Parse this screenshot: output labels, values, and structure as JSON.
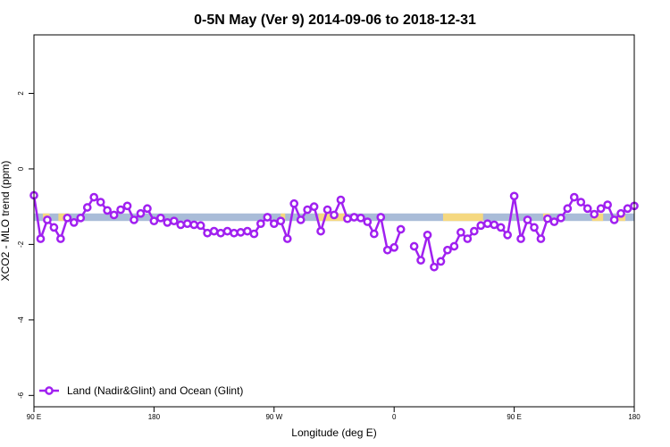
{
  "chart_data": {
    "type": "line",
    "title": "0-5N May (Ver 9)   2014-09-06 to 2018-12-31",
    "xlabel": "Longitude (deg E)",
    "ylabel": "XCO2 - MLO trend (ppm)",
    "xlim": [
      -90,
      180
    ],
    "ylim": [
      -6.3,
      3.55
    ],
    "xticks": [
      {
        "value": -90,
        "label": "90 E"
      },
      {
        "value": -36,
        "label": "180"
      },
      {
        "value": 18,
        "label": "90 W"
      },
      {
        "value": 72,
        "label": "0"
      },
      {
        "value": 126,
        "label": "90 E"
      },
      {
        "value": 180,
        "label": "180"
      }
    ],
    "yticks": [
      2,
      0,
      -2,
      -4,
      -6
    ],
    "grid": false,
    "legend_position": "bottom-left",
    "colors": {
      "series": "#a020f0",
      "band": "#a9bcd8",
      "band_highlight": "#f5d880"
    },
    "band": {
      "y_low": -1.38,
      "y_high": -1.18
    },
    "band_highlights": [
      [
        -86,
        -83
      ],
      [
        -79,
        -74
      ],
      [
        21,
        23
      ],
      [
        38,
        50
      ],
      [
        94,
        112
      ],
      [
        139,
        142
      ],
      [
        161,
        166
      ],
      [
        172,
        176
      ]
    ],
    "series": [
      {
        "name": "Land (Nadir&Glint) and Ocean (Glint)",
        "points": [
          {
            "x": -90,
            "y": -0.7
          },
          {
            "x": -87,
            "y": -1.85
          },
          {
            "x": -84,
            "y": -1.35
          },
          {
            "x": -81,
            "y": -1.55
          },
          {
            "x": -78,
            "y": -1.85
          },
          {
            "x": -75,
            "y": -1.3
          },
          {
            "x": -72,
            "y": -1.42
          },
          {
            "x": -69,
            "y": -1.3
          },
          {
            "x": -66,
            "y": -1.02
          },
          {
            "x": -63,
            "y": -0.75
          },
          {
            "x": -60,
            "y": -0.88
          },
          {
            "x": -57,
            "y": -1.1
          },
          {
            "x": -54,
            "y": -1.22
          },
          {
            "x": -51,
            "y": -1.08
          },
          {
            "x": -48,
            "y": -0.98
          },
          {
            "x": -45,
            "y": -1.35
          },
          {
            "x": -42,
            "y": -1.18
          },
          {
            "x": -39,
            "y": -1.05
          },
          {
            "x": -36,
            "y": -1.38
          },
          {
            "x": -33,
            "y": -1.3
          },
          {
            "x": -30,
            "y": -1.42
          },
          {
            "x": -27,
            "y": -1.38
          },
          {
            "x": -24,
            "y": -1.48
          },
          {
            "x": -21,
            "y": -1.45
          },
          {
            "x": -18,
            "y": -1.48
          },
          {
            "x": -15,
            "y": -1.5
          },
          {
            "x": -12,
            "y": -1.7
          },
          {
            "x": -9,
            "y": -1.65
          },
          {
            "x": -6,
            "y": -1.7
          },
          {
            "x": -3,
            "y": -1.65
          },
          {
            "x": 0,
            "y": -1.7
          },
          {
            "x": 3,
            "y": -1.68
          },
          {
            "x": 6,
            "y": -1.65
          },
          {
            "x": 9,
            "y": -1.72
          },
          {
            "x": 12,
            "y": -1.45
          },
          {
            "x": 15,
            "y": -1.28
          },
          {
            "x": 18,
            "y": -1.45
          },
          {
            "x": 21,
            "y": -1.38
          },
          {
            "x": 24,
            "y": -1.85
          },
          {
            "x": 27,
            "y": -0.92
          },
          {
            "x": 30,
            "y": -1.35
          },
          {
            "x": 33,
            "y": -1.08
          },
          {
            "x": 36,
            "y": -1.0
          },
          {
            "x": 39,
            "y": -1.65
          },
          {
            "x": 42,
            "y": -1.08
          },
          {
            "x": 45,
            "y": -1.22
          },
          {
            "x": 48,
            "y": -0.82
          },
          {
            "x": 51,
            "y": -1.32
          },
          {
            "x": 54,
            "y": -1.28
          },
          {
            "x": 57,
            "y": -1.3
          },
          {
            "x": 60,
            "y": -1.4
          },
          {
            "x": 63,
            "y": -1.72
          },
          {
            "x": 66,
            "y": -1.28
          },
          {
            "x": 69,
            "y": -2.15
          },
          {
            "x": 72,
            "y": -2.08
          },
          {
            "x": 75,
            "y": -1.6
          },
          {
            "x": 81,
            "y": -2.05
          },
          {
            "x": 84,
            "y": -2.42
          },
          {
            "x": 87,
            "y": -1.75
          },
          {
            "x": 90,
            "y": -2.6
          },
          {
            "x": 93,
            "y": -2.45
          },
          {
            "x": 96,
            "y": -2.15
          },
          {
            "x": 99,
            "y": -2.05
          },
          {
            "x": 102,
            "y": -1.68
          },
          {
            "x": 105,
            "y": -1.85
          },
          {
            "x": 108,
            "y": -1.65
          },
          {
            "x": 111,
            "y": -1.5
          },
          {
            "x": 114,
            "y": -1.45
          },
          {
            "x": 117,
            "y": -1.48
          },
          {
            "x": 120,
            "y": -1.55
          },
          {
            "x": 123,
            "y": -1.75
          },
          {
            "x": 126,
            "y": -0.72
          },
          {
            "x": 129,
            "y": -1.85
          },
          {
            "x": 132,
            "y": -1.35
          },
          {
            "x": 135,
            "y": -1.55
          },
          {
            "x": 138,
            "y": -1.85
          },
          {
            "x": 141,
            "y": -1.32
          },
          {
            "x": 144,
            "y": -1.4
          },
          {
            "x": 147,
            "y": -1.3
          },
          {
            "x": 150,
            "y": -1.05
          },
          {
            "x": 153,
            "y": -0.75
          },
          {
            "x": 156,
            "y": -0.88
          },
          {
            "x": 159,
            "y": -1.05
          },
          {
            "x": 162,
            "y": -1.2
          },
          {
            "x": 165,
            "y": -1.05
          },
          {
            "x": 168,
            "y": -0.95
          },
          {
            "x": 171,
            "y": -1.35
          },
          {
            "x": 174,
            "y": -1.18
          },
          {
            "x": 177,
            "y": -1.05
          },
          {
            "x": 180,
            "y": -0.98
          }
        ]
      }
    ]
  }
}
